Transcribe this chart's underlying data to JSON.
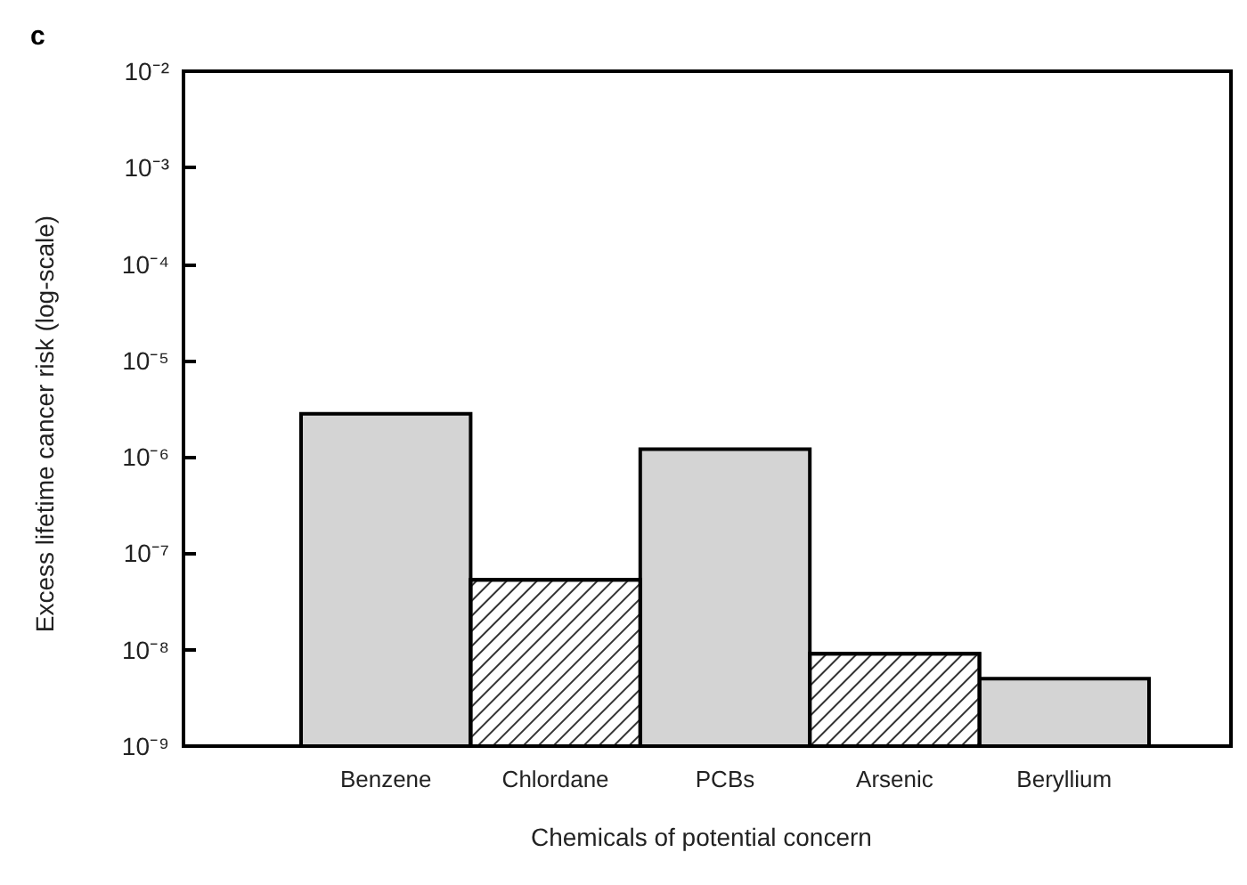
{
  "chart_data": {
    "type": "bar",
    "title": "c",
    "xlabel": "Chemicals of potential concern",
    "ylabel": "Excess lifetime cancer risk (log-scale)",
    "categories": [
      "Benzene",
      "Chlordane",
      "PCBs",
      "Arsenic",
      "Beryllium"
    ],
    "series": [
      {
        "color": "#d4d4d4",
        "values": [
          2.8e-06,
          null,
          1.2e-06,
          null,
          5e-09
        ]
      },
      {
        "color": "#ffffff",
        "values": [
          null,
          5.3e-08,
          null,
          9.1e-09,
          null
        ]
      }
    ],
    "log": "y",
    "ylim": [
      1e-09,
      0.01
    ],
    "yticks": [
      {
        "value": 1e-09,
        "label": "10⁻⁹"
      },
      {
        "value": 1e-08,
        "label": "10⁻⁸"
      },
      {
        "value": 1e-07,
        "label": "10⁻⁷"
      },
      {
        "value": 1e-06,
        "label": "10⁻⁶"
      },
      {
        "value": 1e-05,
        "label": "10⁻⁵"
      },
      {
        "value": 0.0001,
        "label": "10⁻⁴"
      },
      {
        "value": 0.001,
        "label": "10⁻³"
      },
      {
        "value": 0.01,
        "label": "10⁻²"
      }
    ],
    "grid": false
  }
}
